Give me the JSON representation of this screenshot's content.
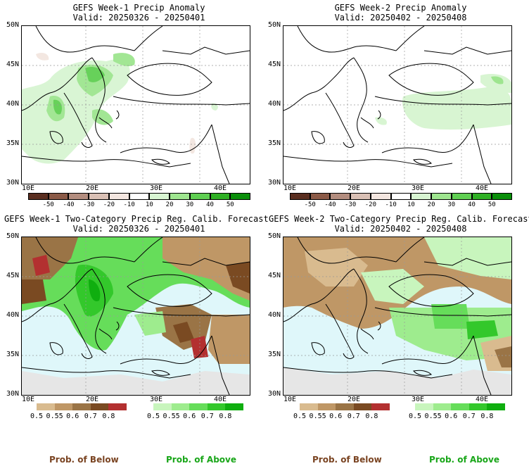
{
  "panels": [
    {
      "title": "GEFS Week-1 Precip Anomaly",
      "valid": "Valid: 20250326 - 20250401"
    },
    {
      "title": "GEFS Week-2 Precip Anomaly",
      "valid": "Valid: 20250402 - 20250408"
    },
    {
      "title": "GEFS Week-1 Two-Category Precip Reg. Calib. Forecast",
      "valid": "Valid: 20250326 - 20250401"
    },
    {
      "title": "GEFS Week-2 Two-Category Precip Reg. Calib. Forecast",
      "valid": "Valid: 20250402 - 20250408"
    }
  ],
  "lat_labels": [
    "50N",
    "45N",
    "40N",
    "35N",
    "30N"
  ],
  "lon_labels": [
    "10E",
    "20E",
    "30E",
    "40E"
  ],
  "anomaly_scale": {
    "labels": [
      "-50",
      "-40",
      "-30",
      "-20",
      "-10",
      "10",
      "20",
      "30",
      "40",
      "50"
    ],
    "colors": [
      "#5a2e20",
      "#8b5a47",
      "#b38d7f",
      "#d9c0b5",
      "#f3e6e0",
      "#ffffff",
      "#d8f5d2",
      "#9ee58f",
      "#5fcf52",
      "#2fb024",
      "#0a8f0a"
    ]
  },
  "prob_below": {
    "labels": [
      "0.5",
      "0.55",
      "0.6",
      "0.7",
      "0.8"
    ],
    "colors": [
      "#d9bb8f",
      "#bf9766",
      "#9a7446",
      "#7a4a22",
      "#b33030"
    ]
  },
  "prob_above": {
    "labels": [
      "0.5",
      "0.55",
      "0.6",
      "0.7",
      "0.8"
    ],
    "colors": [
      "#c8f5bd",
      "#9eec8e",
      "#66dd5a",
      "#33c82b",
      "#0fae0f"
    ]
  },
  "footer": {
    "below": "Prob. of Below",
    "above": "Prob. of Above"
  },
  "colors": {
    "below_text": "#7a4422",
    "above_text": "#19a619",
    "sea": "#dff7fa",
    "nodata": "#e6e6e6"
  }
}
